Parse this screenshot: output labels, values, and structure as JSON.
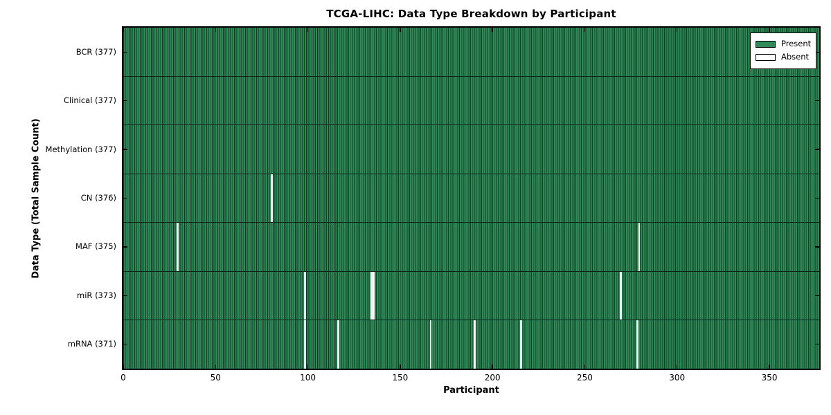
{
  "title": "TCGA-LIHC: Data Type Breakdown by Participant",
  "chart_data": {
    "type": "heatmap",
    "title": "TCGA-LIHC: Data Type Breakdown by Participant",
    "xlabel": "Participant",
    "ylabel": "Data Type (Total Sample Count)",
    "xlim": [
      0,
      377
    ],
    "x_ticks": [
      0,
      50,
      100,
      150,
      200,
      250,
      300,
      350
    ],
    "total_participants": 377,
    "grid": false,
    "legend_position": "upper right",
    "legend": [
      {
        "label": "Present",
        "color": "#2e8b57"
      },
      {
        "label": "Absent",
        "color": "#ffffff"
      }
    ],
    "rows": [
      {
        "name": "BCR",
        "label": "BCR (377)",
        "total": 377,
        "absent": []
      },
      {
        "name": "Clinical",
        "label": "Clinical (377)",
        "total": 377,
        "absent": []
      },
      {
        "name": "Methylation",
        "label": "Methylation (377)",
        "total": 377,
        "absent": []
      },
      {
        "name": "CN",
        "label": "CN (376)",
        "total": 376,
        "absent": [
          80
        ]
      },
      {
        "name": "MAF",
        "label": "MAF (375)",
        "total": 375,
        "absent": [
          29,
          279
        ]
      },
      {
        "name": "miR",
        "label": "miR (373)",
        "total": 373,
        "absent": [
          98,
          134,
          135,
          269
        ]
      },
      {
        "name": "mRNA",
        "label": "mRNA (371)",
        "total": 371,
        "absent": [
          98,
          116,
          166,
          190,
          215,
          278
        ]
      }
    ],
    "colors": {
      "present": "#2e8b57",
      "present_edge": "#143826",
      "absent": "#ffffff",
      "axis": "#000000",
      "background": "#ffffff"
    }
  }
}
